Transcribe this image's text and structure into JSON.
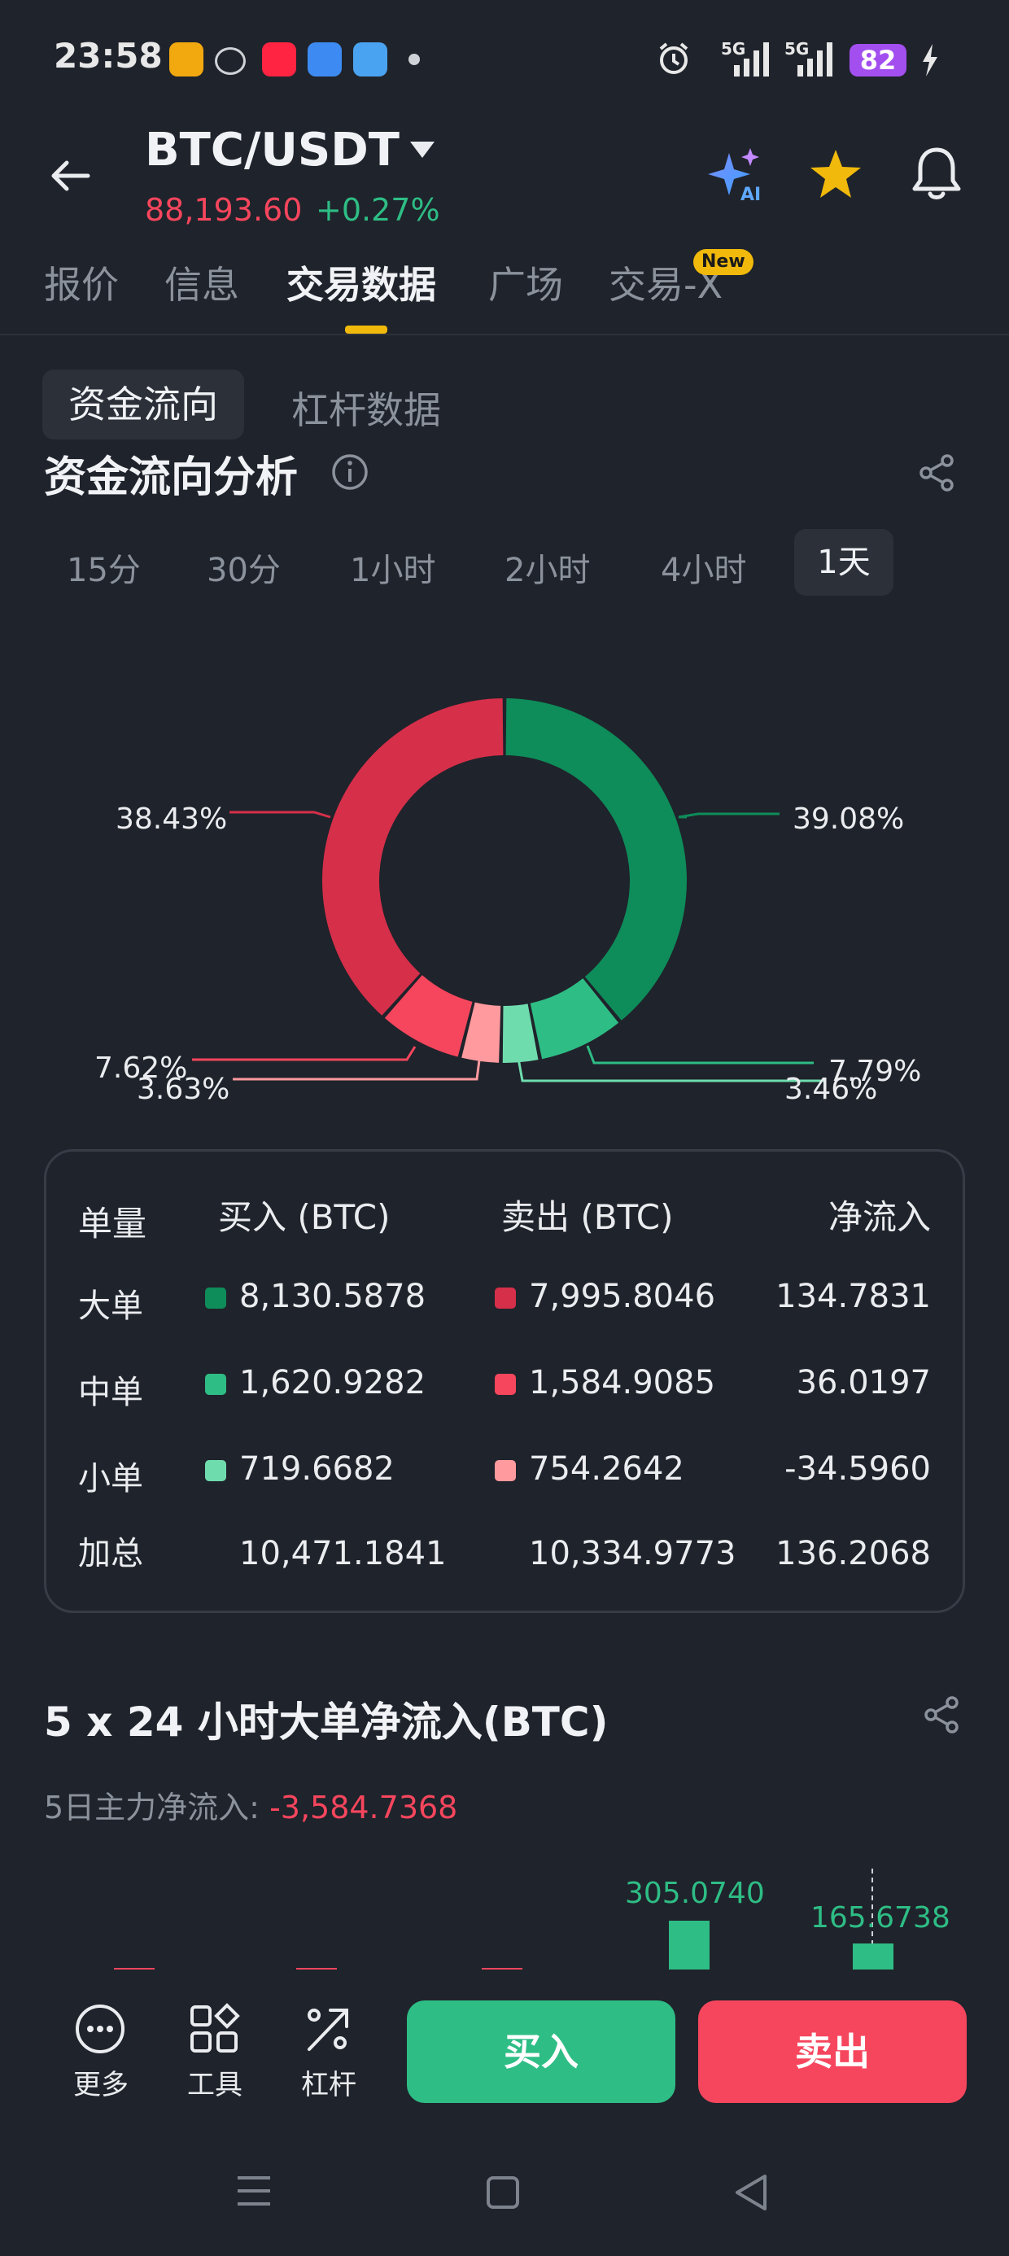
{
  "status_bar": {
    "time": "23:58",
    "signal_1": "5G",
    "signal_2": "5G",
    "battery": "82"
  },
  "header": {
    "pair": "BTC/USDT",
    "price": "88,193.60",
    "change": "+0.27%",
    "price_color": "#f6465d",
    "change_color": "#2ebd85"
  },
  "tabs": [
    {
      "label": "报价"
    },
    {
      "label": "信息"
    },
    {
      "label": "交易数据"
    },
    {
      "label": "广场"
    },
    {
      "label": "交易-X"
    }
  ],
  "new_badge": "New",
  "subtabs": [
    {
      "label": "资金流向"
    },
    {
      "label": "杠杆数据"
    }
  ],
  "flow": {
    "title": "资金流向分析",
    "ranges": [
      "15分",
      "30分",
      "1小时",
      "2小时",
      "4小时",
      "1天"
    ],
    "selected_range": "1天"
  },
  "chart_data": [
    {
      "type": "pie",
      "slices": [
        {
          "label": "大单买入",
          "value": 39.08,
          "color": "#0e8c5a"
        },
        {
          "label": "中单买入",
          "value": 7.79,
          "color": "#2ebd85"
        },
        {
          "label": "小单买入",
          "value": 3.46,
          "color": "#6fdcae"
        },
        {
          "label": "小单卖出",
          "value": 3.63,
          "color": "#ff9a9e"
        },
        {
          "label": "中单卖出",
          "value": 7.62,
          "color": "#f6465d"
        },
        {
          "label": "大单卖出",
          "value": 38.43,
          "color": "#d62f4a"
        }
      ],
      "labels": [
        "39.08%",
        "7.79%",
        "3.46%",
        "3.63%",
        "7.62%",
        "38.43%"
      ]
    },
    {
      "type": "bar",
      "title": "5 x 24 小时大单净流入(BTC)",
      "visible_values": [
        305.074,
        165.6738
      ],
      "visible_labels": [
        "305.0740",
        "165.6738"
      ]
    }
  ],
  "table": {
    "headers": [
      "单量",
      "买入 (BTC)",
      "卖出 (BTC)",
      "净流入"
    ],
    "rows": [
      {
        "size": "大单",
        "buy": "8,130.5878",
        "sell": "7,995.8046",
        "net": "134.7831",
        "buy_color": "#0e8c5a",
        "sell_color": "#d62f4a"
      },
      {
        "size": "中单",
        "buy": "1,620.9282",
        "sell": "1,584.9085",
        "net": "36.0197",
        "buy_color": "#2ebd85",
        "sell_color": "#f6465d"
      },
      {
        "size": "小单",
        "buy": "719.6682",
        "sell": "754.2642",
        "net": "-34.5960",
        "buy_color": "#6fdcae",
        "sell_color": "#ff9a9e"
      }
    ],
    "total": {
      "size": "加总",
      "buy": "10,471.1841",
      "sell": "10,334.9773",
      "net": "136.2068"
    }
  },
  "bigorder": {
    "title": "5 x 24 小时大单净流入(BTC)",
    "sub_label": "5日主力净流入: ",
    "sub_value": "-3,584.7368"
  },
  "bottom": {
    "more": "更多",
    "tools": "工具",
    "leverage": "杠杆",
    "buy": "买入",
    "sell": "卖出"
  }
}
